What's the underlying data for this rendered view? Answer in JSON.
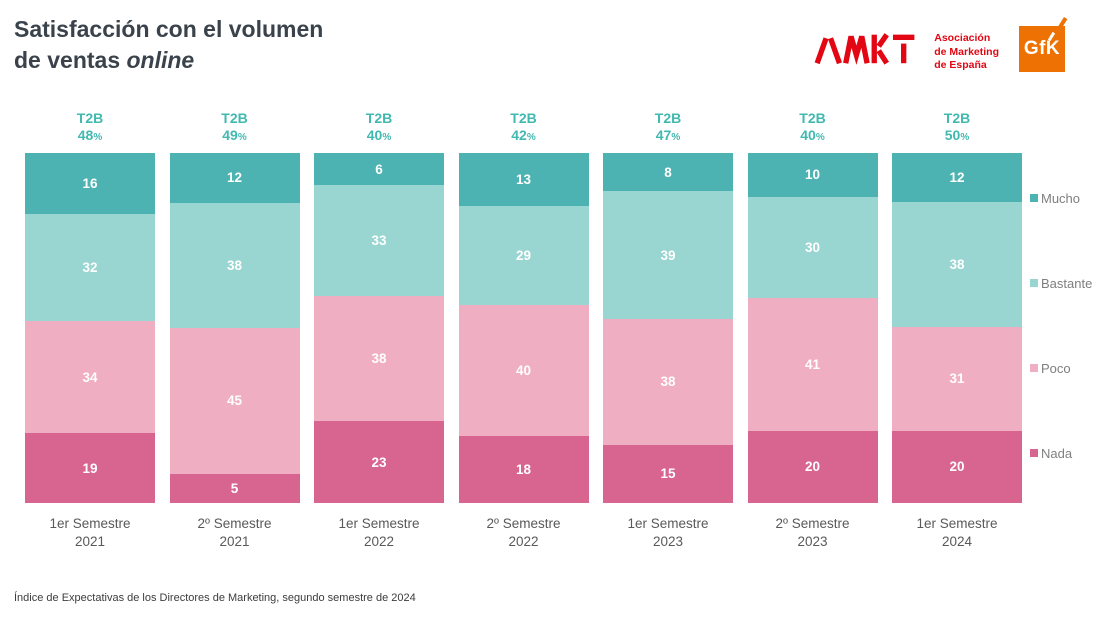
{
  "header": {
    "title": {
      "line1": "Satisfacción con el volumen",
      "line2_regular": "de ventas",
      "line2_italic": "online"
    },
    "amkt": {
      "name": "AMKT",
      "sub_lines": [
        "Asociación",
        "de Marketing",
        "de España"
      ],
      "color": "#e30613"
    },
    "gfk": {
      "name": "GfK",
      "bg": "#ee7203"
    }
  },
  "chart_data": {
    "type": "bar",
    "stacked": true,
    "orientation": "vertical",
    "title": "Satisfacción con el volumen de ventas online",
    "categories": [
      "1er Semestre 2021",
      "2º Semestre 2021",
      "1er Semestre 2022",
      "2º Semestre 2022",
      "1er Semestre 2023",
      "2º Semestre 2023",
      "1er Semestre 2024"
    ],
    "series": [
      {
        "name": "Mucho",
        "color": "#4db3b2",
        "values": [
          16,
          12,
          6,
          13,
          8,
          10,
          12
        ]
      },
      {
        "name": "Bastante",
        "color": "#99d5d1",
        "values": [
          32,
          38,
          33,
          29,
          39,
          30,
          38
        ]
      },
      {
        "name": "Poco",
        "color": "#f0aec3",
        "values": [
          34,
          45,
          38,
          40,
          38,
          41,
          31
        ]
      },
      {
        "name": "Nada",
        "color": "#d76590",
        "values": [
          19,
          5,
          23,
          18,
          15,
          20,
          20
        ]
      }
    ],
    "t2b": {
      "label": "T2B",
      "suffix": "%",
      "color": "#42b9b0",
      "values": [
        48,
        49,
        40,
        42,
        47,
        40,
        50
      ]
    },
    "ylim": [
      0,
      100
    ],
    "legend_position": "right",
    "value_label_color": "#ffffff"
  },
  "footer": {
    "note": "Índice de Expectativas de los Directores de Marketing, segundo semestre de 2024"
  }
}
